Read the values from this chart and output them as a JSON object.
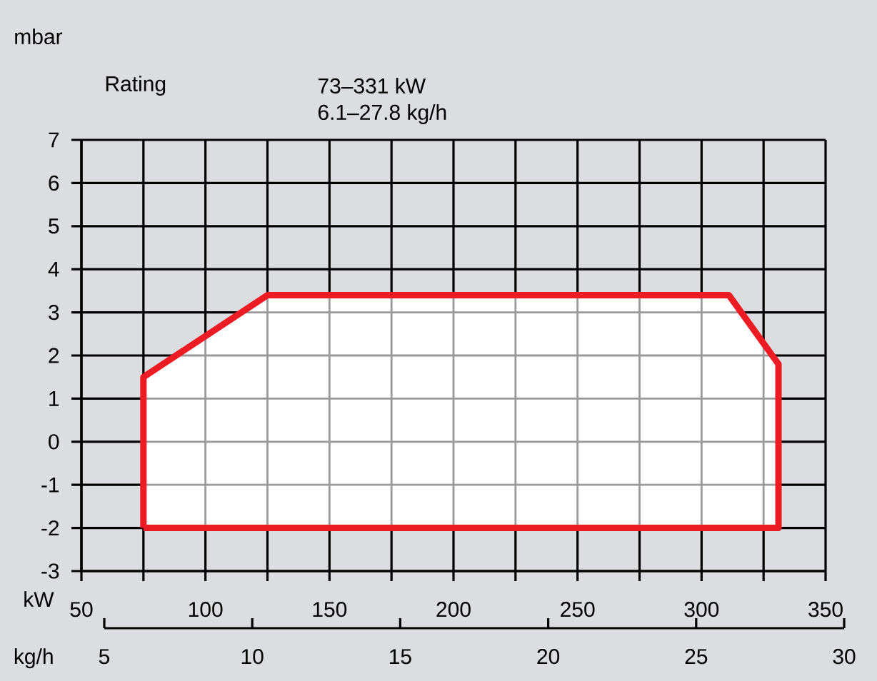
{
  "chart_data": {
    "type": "area",
    "ylabel": "mbar",
    "xlabel": "kW",
    "x2label": "kg/h",
    "annotations": [
      "Rating",
      "73–331 kW",
      "6.1–27.8 kg/h"
    ],
    "series": [
      {
        "color": "#ed1c24",
        "x": [
          75,
          75,
          125,
          311,
          331,
          331,
          75
        ],
        "values": [
          -2,
          1.5,
          3.4,
          3.4,
          1.8,
          -2,
          -2
        ]
      }
    ],
    "xlim": [
      50,
      350
    ],
    "xticks": [
      50,
      {
        "value": 75,
        "label": null
      },
      100,
      {
        "value": 125,
        "label": null
      },
      150,
      {
        "value": 175,
        "label": null
      },
      200,
      {
        "value": 225,
        "label": null
      },
      250,
      {
        "value": 275,
        "label": null
      },
      300,
      {
        "value": 325,
        "label": null
      },
      350
    ],
    "ylim": [
      -3,
      7
    ],
    "yticks": [
      -3,
      -2,
      -1,
      0,
      1,
      2,
      3,
      4,
      5,
      6,
      7
    ],
    "x2lim": [
      5,
      30
    ],
    "x2ticks": [
      5,
      10,
      15,
      20,
      25,
      30
    ],
    "grid": true
  }
}
